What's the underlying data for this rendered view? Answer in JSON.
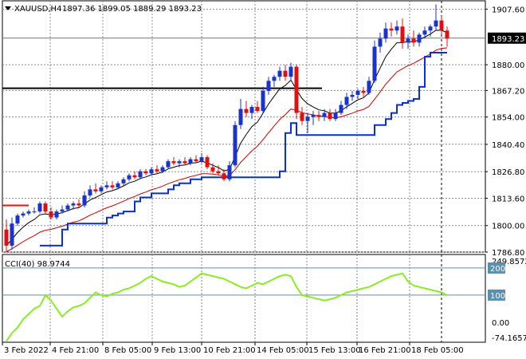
{
  "header": {
    "symbol": "XAUUSD,H4",
    "ohlc": "1897.36 1899.05 1889.29 1893.23",
    "indicator": "CCI(40) 98.9744"
  },
  "colors": {
    "bull_candle": "#1a33cc",
    "bear_candle": "#e01010",
    "fast_ma": "#000000",
    "slow_ma": "#cc0000",
    "trail_stop": "#0a2fd6",
    "cci": "#88ee22",
    "level_line": "#5b8fb0",
    "grid": "#8a8a8a",
    "price_tag_bg": "#000000",
    "resistance": "#000000"
  },
  "chart_data": [
    {
      "type": "candlestick",
      "title": "XAUUSD,H4",
      "y_axis_ticks": [
        "1907.60",
        "1893.23",
        "1880.00",
        "1867.20",
        "1854.00",
        "1840.40",
        "1826.80",
        "1813.60",
        "1800.00",
        "1786.80"
      ],
      "ylim": [
        1786.8,
        1911.8
      ],
      "current_price": "1893.23",
      "x_axis_ticks": [
        "3 Feb 2022",
        "4 Feb 21:00",
        "8 Feb 05:00",
        "9 Feb 13:00",
        "10 Feb 21:00",
        "14 Feb 05:00",
        "15 Feb 13:00",
        "16 Feb 21:00",
        "18 Feb 05:00"
      ],
      "horizontal_levels": [
        1868.3,
        1893.23
      ],
      "candles": [
        [
          1798,
          1803,
          1787,
          1790
        ],
        [
          1790,
          1804,
          1788,
          1801
        ],
        [
          1801,
          1806,
          1800,
          1805
        ],
        [
          1805,
          1807,
          1804,
          1806
        ],
        [
          1806,
          1808,
          1805,
          1807
        ],
        [
          1807,
          1809,
          1806,
          1807
        ],
        [
          1807,
          1812,
          1806,
          1811
        ],
        [
          1811,
          1812,
          1806,
          1807
        ],
        [
          1807,
          1809,
          1803,
          1804
        ],
        [
          1804,
          1808,
          1803,
          1807
        ],
        [
          1807,
          1810,
          1806,
          1808
        ],
        [
          1808,
          1811,
          1807,
          1810
        ],
        [
          1810,
          1812,
          1808,
          1811
        ],
        [
          1811,
          1813,
          1809,
          1810
        ],
        [
          1810,
          1817,
          1809,
          1815
        ],
        [
          1815,
          1820,
          1814,
          1818
        ],
        [
          1818,
          1821,
          1816,
          1817
        ],
        [
          1817,
          1820,
          1816,
          1819
        ],
        [
          1819,
          1822,
          1818,
          1820
        ],
        [
          1820,
          1822,
          1818,
          1819
        ],
        [
          1819,
          1822,
          1818,
          1821
        ],
        [
          1821,
          1824,
          1820,
          1823
        ],
        [
          1823,
          1826,
          1822,
          1825
        ],
        [
          1825,
          1827,
          1823,
          1824
        ],
        [
          1824,
          1828,
          1823,
          1827
        ],
        [
          1827,
          1828,
          1825,
          1826
        ],
        [
          1826,
          1829,
          1825,
          1828
        ],
        [
          1828,
          1830,
          1826,
          1827
        ],
        [
          1827,
          1830,
          1826,
          1829
        ],
        [
          1829,
          1833,
          1828,
          1832
        ],
        [
          1832,
          1834,
          1830,
          1831
        ],
        [
          1831,
          1833,
          1829,
          1832
        ],
        [
          1832,
          1834,
          1830,
          1831
        ],
        [
          1831,
          1834,
          1830,
          1833
        ],
        [
          1833,
          1835,
          1831,
          1832
        ],
        [
          1832,
          1836,
          1831,
          1834
        ],
        [
          1834,
          1835,
          1828,
          1829
        ],
        [
          1829,
          1831,
          1826,
          1827
        ],
        [
          1827,
          1830,
          1825,
          1826
        ],
        [
          1826,
          1828,
          1822,
          1823
        ],
        [
          1823,
          1832,
          1822,
          1830
        ],
        [
          1830,
          1852,
          1829,
          1850
        ],
        [
          1850,
          1863,
          1848,
          1858
        ],
        [
          1858,
          1862,
          1854,
          1856
        ],
        [
          1856,
          1860,
          1853,
          1859
        ],
        [
          1859,
          1862,
          1856,
          1857
        ],
        [
          1857,
          1869,
          1856,
          1867
        ],
        [
          1867,
          1874,
          1865,
          1872
        ],
        [
          1872,
          1875,
          1869,
          1874
        ],
        [
          1874,
          1879,
          1872,
          1877
        ],
        [
          1877,
          1880,
          1872,
          1874
        ],
        [
          1874,
          1881,
          1872,
          1879
        ],
        [
          1879,
          1880,
          1853,
          1856
        ],
        [
          1856,
          1859,
          1850,
          1852
        ],
        [
          1852,
          1856,
          1846,
          1854
        ],
        [
          1854,
          1857,
          1850,
          1855
        ],
        [
          1855,
          1857,
          1852,
          1854
        ],
        [
          1854,
          1858,
          1852,
          1856
        ],
        [
          1856,
          1858,
          1852,
          1853
        ],
        [
          1853,
          1858,
          1852,
          1856
        ],
        [
          1856,
          1862,
          1855,
          1860
        ],
        [
          1860,
          1866,
          1858,
          1864
        ],
        [
          1864,
          1867,
          1862,
          1865
        ],
        [
          1865,
          1868,
          1863,
          1867
        ],
        [
          1867,
          1869,
          1864,
          1866
        ],
        [
          1866,
          1874,
          1865,
          1872
        ],
        [
          1872,
          1892,
          1871,
          1889
        ],
        [
          1889,
          1896,
          1886,
          1893
        ],
        [
          1893,
          1901,
          1891,
          1898
        ],
        [
          1898,
          1901,
          1894,
          1897
        ],
        [
          1897,
          1902,
          1895,
          1899
        ],
        [
          1899,
          1903,
          1888,
          1891
        ],
        [
          1891,
          1895,
          1888,
          1893
        ],
        [
          1893,
          1897,
          1889,
          1891
        ],
        [
          1891,
          1896,
          1889,
          1895
        ],
        [
          1895,
          1899,
          1893,
          1897
        ],
        [
          1897,
          1900,
          1894,
          1899
        ],
        [
          1899,
          1910,
          1897,
          1902
        ],
        [
          1902,
          1904,
          1895,
          1897
        ],
        [
          1897,
          1899,
          1889,
          1893
        ]
      ]
    },
    {
      "type": "line",
      "title": "CCI(40) 98.9744",
      "y_axis_ticks": [
        "249.8572",
        "200",
        "100",
        "0.00",
        "-74.1657"
      ],
      "ylim": [
        -74.1657,
        249.8572
      ],
      "levels": [
        200,
        100
      ],
      "values": [
        -70,
        -40,
        -20,
        10,
        30,
        50,
        60,
        100,
        80,
        50,
        20,
        40,
        55,
        60,
        70,
        90,
        110,
        100,
        95,
        105,
        110,
        120,
        125,
        135,
        145,
        160,
        170,
        160,
        150,
        145,
        140,
        130,
        135,
        150,
        165,
        180,
        175,
        170,
        165,
        160,
        150,
        140,
        130,
        125,
        135,
        145,
        140,
        150,
        160,
        170,
        175,
        170,
        130,
        100,
        95,
        90,
        85,
        80,
        85,
        90,
        100,
        110,
        115,
        120,
        125,
        130,
        140,
        150,
        160,
        170,
        175,
        180,
        150,
        135,
        130,
        125,
        120,
        115,
        110,
        99
      ]
    }
  ]
}
